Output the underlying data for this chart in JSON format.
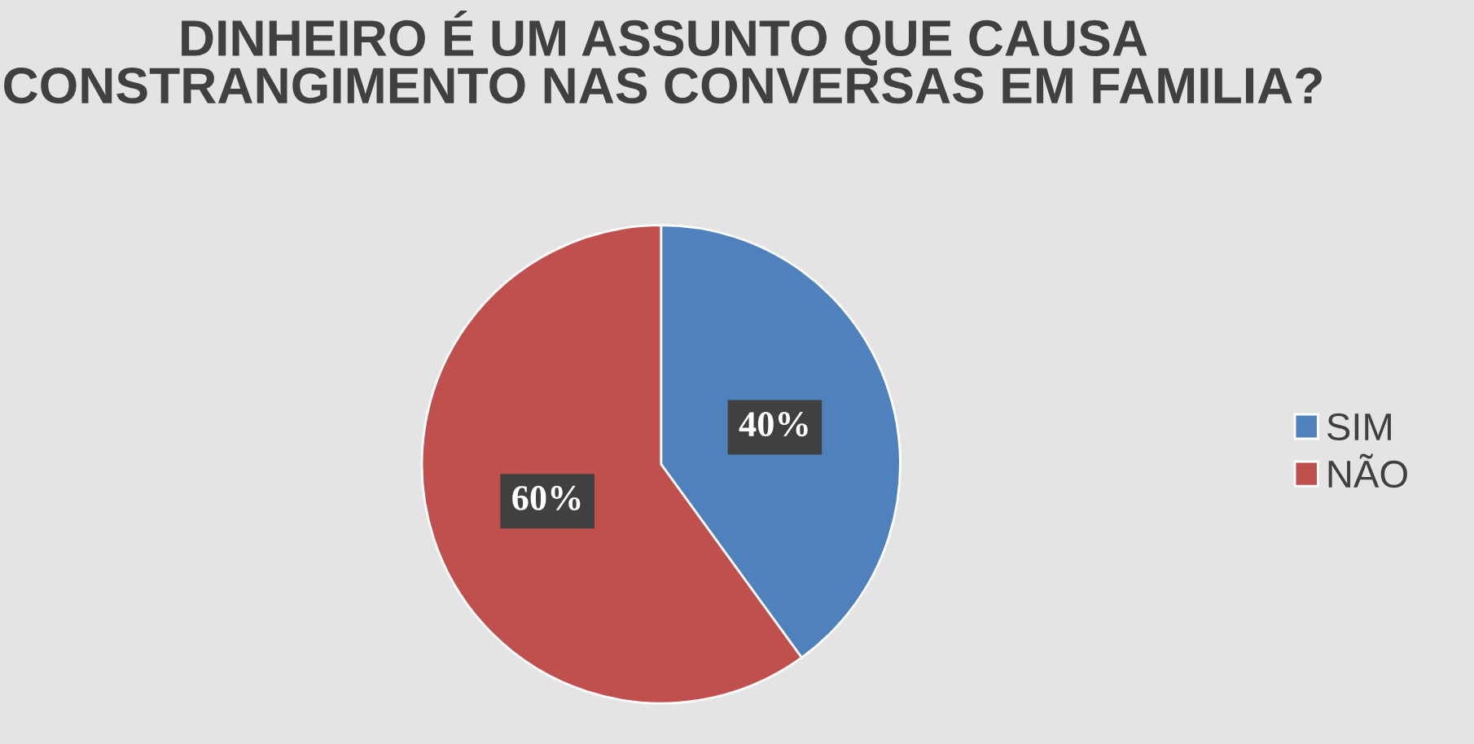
{
  "chart_data": {
    "type": "pie",
    "title": "DINHEIRO É UM ASSUNTO QUE CAUSA CONSTRANGIMENTO NAS CONVERSAS EM FAMILIA?",
    "categories": [
      "SIM",
      "NÃO"
    ],
    "values": [
      40,
      60
    ],
    "colors": [
      "#4f81bd",
      "#c0504d"
    ],
    "value_labels": [
      "40%",
      "60%"
    ],
    "legend": "right"
  }
}
